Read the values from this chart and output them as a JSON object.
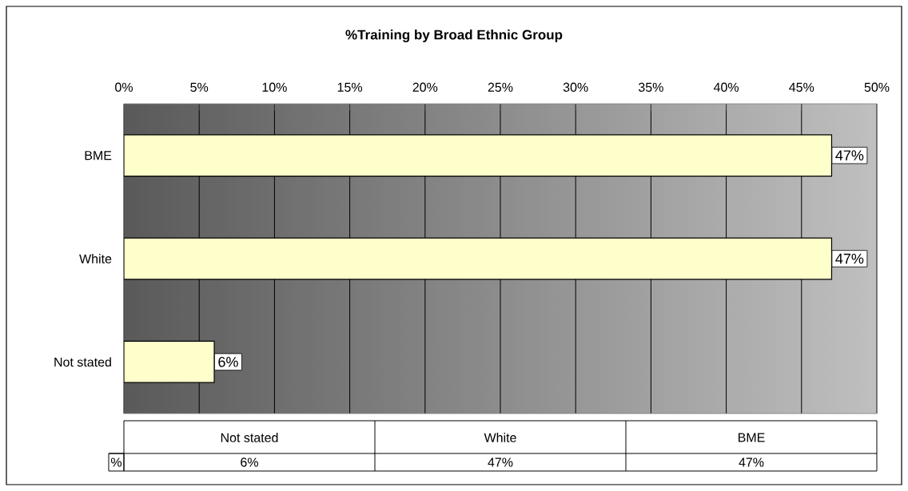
{
  "chart_data": {
    "type": "bar",
    "orientation": "horizontal",
    "title": "%Training by Broad Ethnic Group",
    "categories": [
      "BME",
      "White",
      "Not stated"
    ],
    "series": [
      {
        "name": "%",
        "color": "#ffffcc",
        "values": [
          47,
          47,
          6
        ],
        "value_labels": [
          "47%",
          "47%",
          "6%"
        ]
      }
    ],
    "xlim": [
      0,
      50
    ],
    "xticks": [
      {
        "value": 0,
        "label": "0%"
      },
      {
        "value": 5,
        "label": "5%"
      },
      {
        "value": 10,
        "label": "10%"
      },
      {
        "value": 15,
        "label": "15%"
      },
      {
        "value": 20,
        "label": "20%"
      },
      {
        "value": 25,
        "label": "25%"
      },
      {
        "value": 30,
        "label": "30%"
      },
      {
        "value": 35,
        "label": "35%"
      },
      {
        "value": 40,
        "label": "40%"
      },
      {
        "value": 45,
        "label": "45%"
      },
      {
        "value": 50,
        "label": "50%"
      }
    ],
    "grid": "x",
    "legend": false
  }
}
